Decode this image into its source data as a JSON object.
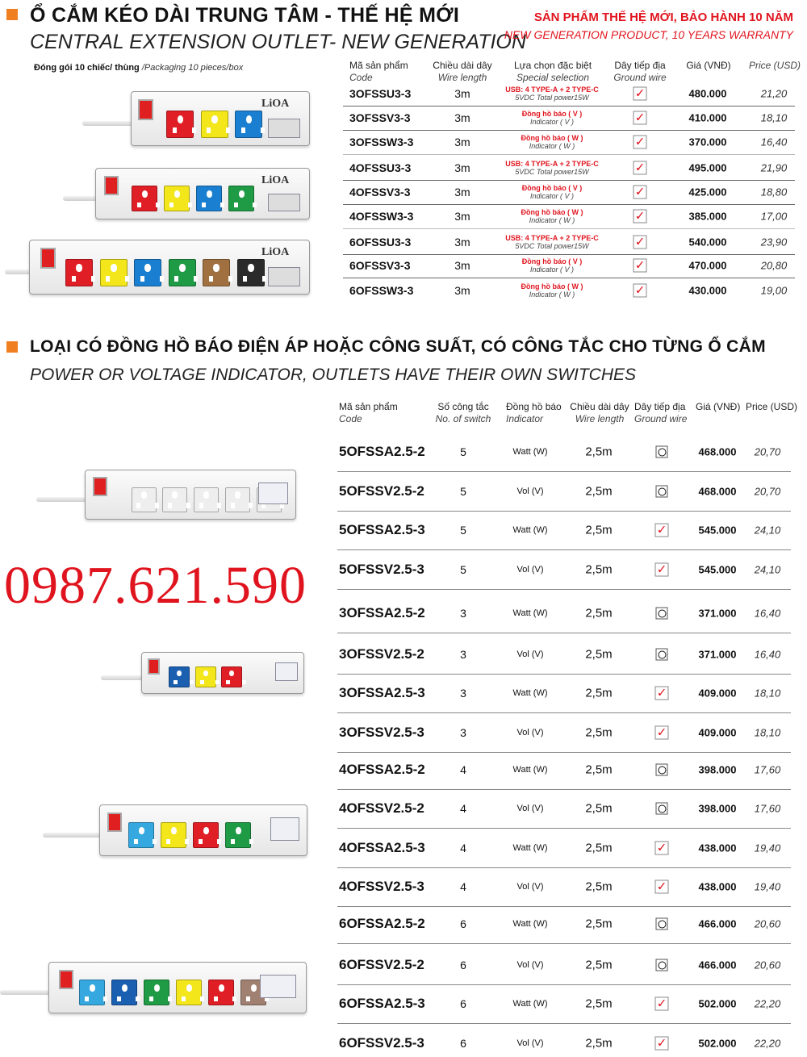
{
  "section1": {
    "title": "Ổ CẮM KÉO DÀI TRUNG TÂM - THẾ HỆ MỚI",
    "subtitle": "CENTRAL EXTENSION OUTLET- NEW GENERATION",
    "promo_vi": "SẢN PHẨM THẾ HỆ MỚI, BẢO HÀNH 10 NĂM",
    "promo_en": "NEW GENERATION PRODUCT, 10 YEARS WARRANTY",
    "packaging_vi": "Đóng gói 10 chiếc/ thùng",
    "packaging_en": "/Packaging 10 pieces/box",
    "headers": {
      "code": "Mã sản phẩm",
      "code_en": "Code",
      "length": "Chiều dài dây",
      "length_en": "Wire length",
      "special": "Lựa chọn đặc biệt",
      "special_en": "Special selection",
      "ground": "Dây tiếp địa",
      "ground_en": "Ground wire",
      "vnd": "Giá (VNĐ)",
      "usd": "Price (USD)"
    },
    "rows": [
      {
        "code": "3OFSSU3-3",
        "length": "3m",
        "special": "USB: 4 TYPE-A + 2 TYPE-C",
        "special_en": "5VDC Total power15W",
        "ground": "check",
        "vnd": "480.000",
        "usd": "21,20"
      },
      {
        "code": "3OFSSV3-3",
        "length": "3m",
        "special": "Đồng hồ báo ( V )",
        "special_en": "Indicator ( V )",
        "ground": "check",
        "vnd": "410.000",
        "usd": "18,10"
      },
      {
        "code": "3OFSSW3-3",
        "length": "3m",
        "special": "Đồng hồ báo ( W )",
        "special_en": "Indicator ( W )",
        "ground": "check",
        "vnd": "370.000",
        "usd": "16,40"
      },
      {
        "code": "4OFSSU3-3",
        "length": "3m",
        "special": "USB: 4 TYPE-A + 2 TYPE-C",
        "special_en": "5VDC Total power15W",
        "ground": "check",
        "vnd": "495.000",
        "usd": "21,90"
      },
      {
        "code": "4OFSSV3-3",
        "length": "3m",
        "special": "Đồng hồ báo ( V )",
        "special_en": "Indicator ( V )",
        "ground": "check",
        "vnd": "425.000",
        "usd": "18,80"
      },
      {
        "code": "4OFSSW3-3",
        "length": "3m",
        "special": "Đồng hồ báo ( W )",
        "special_en": "Indicator ( W )",
        "ground": "check",
        "vnd": "385.000",
        "usd": "17,00"
      },
      {
        "code": "6OFSSU3-3",
        "length": "3m",
        "special": "USB: 4 TYPE-A + 2 TYPE-C",
        "special_en": "5VDC Total power15W",
        "ground": "check",
        "vnd": "540.000",
        "usd": "23,90"
      },
      {
        "code": "6OFSSV3-3",
        "length": "3m",
        "special": "Đồng hồ báo ( V )",
        "special_en": "Indicator ( V )",
        "ground": "check",
        "vnd": "470.000",
        "usd": "20,80"
      },
      {
        "code": "6OFSSW3-3",
        "length": "3m",
        "special": "Đồng hồ báo ( W )",
        "special_en": "Indicator ( W )",
        "ground": "check",
        "vnd": "430.000",
        "usd": "19,00"
      }
    ],
    "products": [
      {
        "brand": "LiOA",
        "sockets": [
          "#e01e25",
          "#f3e61a",
          "#1a7fd0"
        ]
      },
      {
        "brand": "LiOA",
        "sockets": [
          "#e01e25",
          "#f3e61a",
          "#1a7fd0",
          "#1f9a45"
        ]
      },
      {
        "brand": "LiOA",
        "sockets": [
          "#e01e25",
          "#f3e61a",
          "#1a7fd0",
          "#1f9a45",
          "#a07040",
          "#2b2b2b"
        ]
      }
    ]
  },
  "section2": {
    "title": "LOẠI CÓ ĐỒNG HỒ BÁO ĐIỆN ÁP HOẶC CÔNG SUẤT, CÓ CÔNG TẮC CHO TỪNG Ổ CẮM",
    "subtitle": "POWER OR VOLTAGE INDICATOR, OUTLETS HAVE THEIR OWN SWITCHES",
    "phone": "0987.621.590",
    "headers": {
      "code": "Mã sản phẩm",
      "code_en": "Code",
      "switch": "Số công tắc",
      "switch_en": "No. of switch",
      "indicator": "Đồng hồ báo",
      "indicator_en": "Indicator",
      "length": "Chiều dài dây",
      "length_en": "Wire length",
      "ground": "Dây tiếp địa",
      "ground_en": "Ground wire",
      "vnd": "Giá (VNĐ)",
      "usd": "Price (USD)"
    },
    "rows": [
      {
        "code": "5OFSSA2.5-2",
        "switch": "5",
        "indicator": "Watt (W)",
        "length": "2,5m",
        "ground": "circle",
        "vnd": "468.000",
        "usd": "20,70"
      },
      {
        "code": "5OFSSV2.5-2",
        "switch": "5",
        "indicator": "Vol (V)",
        "length": "2,5m",
        "ground": "circle",
        "vnd": "468.000",
        "usd": "20,70"
      },
      {
        "code": "5OFSSA2.5-3",
        "switch": "5",
        "indicator": "Watt (W)",
        "length": "2,5m",
        "ground": "check",
        "vnd": "545.000",
        "usd": "24,10"
      },
      {
        "code": "5OFSSV2.5-3",
        "switch": "5",
        "indicator": "Vol (V)",
        "length": "2,5m",
        "ground": "check",
        "vnd": "545.000",
        "usd": "24,10"
      },
      {
        "code": "3OFSSA2.5-2",
        "switch": "3",
        "indicator": "Watt (W)",
        "length": "2,5m",
        "ground": "circle",
        "vnd": "371.000",
        "usd": "16,40"
      },
      {
        "code": "3OFSSV2.5-2",
        "switch": "3",
        "indicator": "Vol (V)",
        "length": "2,5m",
        "ground": "circle",
        "vnd": "371.000",
        "usd": "16,40"
      },
      {
        "code": "3OFSSA2.5-3",
        "switch": "3",
        "indicator": "Watt (W)",
        "length": "2,5m",
        "ground": "check",
        "vnd": "409.000",
        "usd": "18,10"
      },
      {
        "code": "3OFSSV2.5-3",
        "switch": "3",
        "indicator": "Vol (V)",
        "length": "2,5m",
        "ground": "check",
        "vnd": "409.000",
        "usd": "18,10"
      },
      {
        "code": "4OFSSA2.5-2",
        "switch": "4",
        "indicator": "Watt (W)",
        "length": "2,5m",
        "ground": "circle",
        "vnd": "398.000",
        "usd": "17,60"
      },
      {
        "code": "4OFSSV2.5-2",
        "switch": "4",
        "indicator": "Vol (V)",
        "length": "2,5m",
        "ground": "circle",
        "vnd": "398.000",
        "usd": "17,60"
      },
      {
        "code": "4OFSSA2.5-3",
        "switch": "4",
        "indicator": "Watt (W)",
        "length": "2,5m",
        "ground": "check",
        "vnd": "438.000",
        "usd": "19,40"
      },
      {
        "code": "4OFSSV2.5-3",
        "switch": "4",
        "indicator": "Vol (V)",
        "length": "2,5m",
        "ground": "check",
        "vnd": "438.000",
        "usd": "19,40"
      },
      {
        "code": "6OFSSA2.5-2",
        "switch": "6",
        "indicator": "Watt (W)",
        "length": "2,5m",
        "ground": "circle",
        "vnd": "466.000",
        "usd": "20,60"
      },
      {
        "code": "6OFSSV2.5-2",
        "switch": "6",
        "indicator": "Vol (V)",
        "length": "2,5m",
        "ground": "circle",
        "vnd": "466.000",
        "usd": "20,60"
      },
      {
        "code": "6OFSSA2.5-3",
        "switch": "6",
        "indicator": "Watt (W)",
        "length": "2,5m",
        "ground": "check",
        "vnd": "502.000",
        "usd": "22,20"
      },
      {
        "code": "6OFSSV2.5-3",
        "switch": "6",
        "indicator": "Vol (V)",
        "length": "2,5m",
        "ground": "check",
        "vnd": "502.000",
        "usd": "22,20"
      }
    ],
    "products": [
      {
        "sockets": [
          "#eeeeee",
          "#eeeeee",
          "#eeeeee",
          "#eeeeee",
          "#eeeeee"
        ]
      },
      {
        "sockets": [
          "#1a5fb0",
          "#f3e61a",
          "#e01e25"
        ]
      },
      {
        "sockets": [
          "#35a8e0",
          "#f3e61a",
          "#e01e25",
          "#1f9a45"
        ]
      },
      {
        "sockets": [
          "#35a8e0",
          "#1a5fb0",
          "#1f9a45",
          "#f3e61a",
          "#e01e25",
          "#a08070"
        ]
      }
    ]
  },
  "colors": {
    "accent": "#f07f22",
    "red": "#e0141e"
  }
}
